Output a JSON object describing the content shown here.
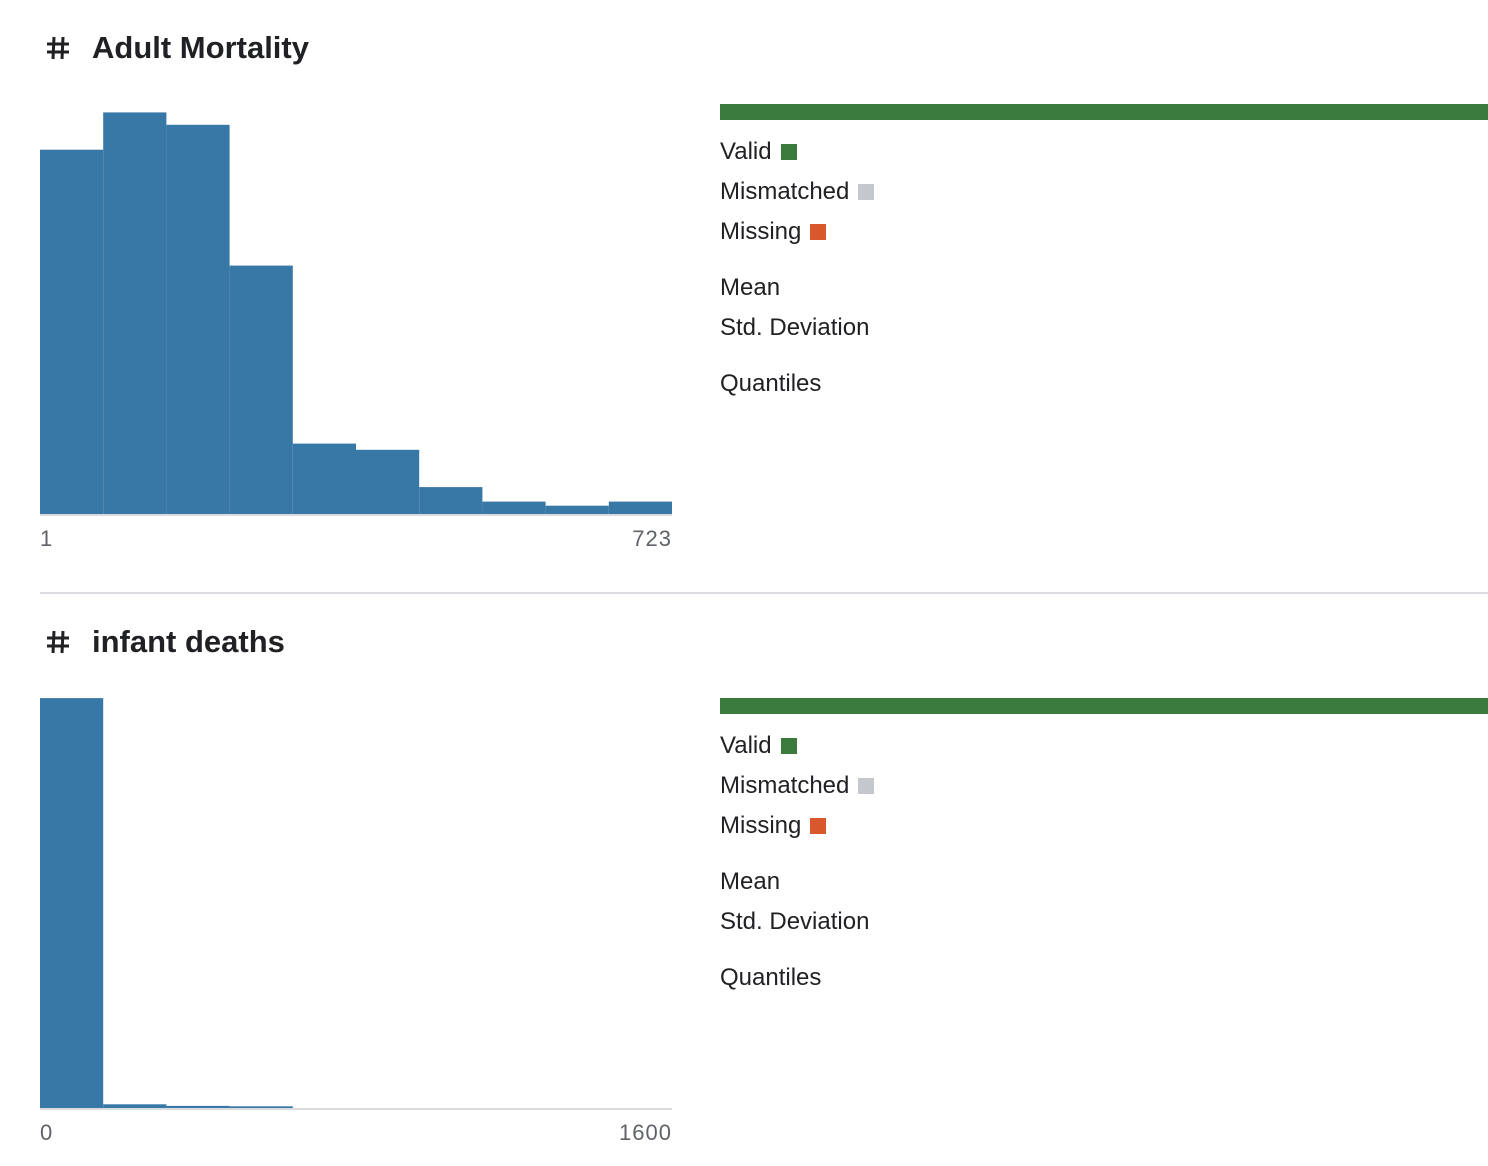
{
  "colors": {
    "histogram_bar": "#3878a6",
    "baseline": "#dadce0",
    "valid": "#3a7a3c",
    "mismatched": "#c4c7cc",
    "missing": "#d9582b",
    "divider": "#dadce0"
  },
  "columns": [
    {
      "type_icon": "hash-icon",
      "name": "Adult Mortality",
      "axis_min": "1",
      "axis_max": "723",
      "valid_fraction": 1.0,
      "mismatched_fraction": 0.0,
      "missing_fraction": 0.0,
      "legend": {
        "valid": "Valid",
        "mismatched": "Mismatched",
        "missing": "Missing"
      },
      "stats": {
        "mean": "Mean",
        "std": "Std. Deviation",
        "quantiles": "Quantiles"
      },
      "chart_data": {
        "type": "bar",
        "x_range": [
          1,
          723
        ],
        "bins": 10,
        "values": [
          0.88,
          0.97,
          0.94,
          0.6,
          0.17,
          0.155,
          0.065,
          0.03,
          0.02,
          0.03
        ],
        "ylim": [
          0,
          1
        ],
        "grid": false
      }
    },
    {
      "type_icon": "hash-icon",
      "name": "infant deaths",
      "axis_min": "0",
      "axis_max": "1600",
      "valid_fraction": 1.0,
      "mismatched_fraction": 0.0,
      "missing_fraction": 0.0,
      "legend": {
        "valid": "Valid",
        "mismatched": "Mismatched",
        "missing": "Missing"
      },
      "stats": {
        "mean": "Mean",
        "std": "Std. Deviation",
        "quantiles": "Quantiles"
      },
      "chart_data": {
        "type": "bar",
        "x_range": [
          0,
          1600
        ],
        "bins": 9,
        "values": [
          0.99,
          0.009,
          0.005,
          0.004,
          0.0,
          0.0,
          0.0,
          0.0,
          0.0
        ],
        "ylim": [
          0,
          1
        ],
        "grid": false
      }
    }
  ]
}
